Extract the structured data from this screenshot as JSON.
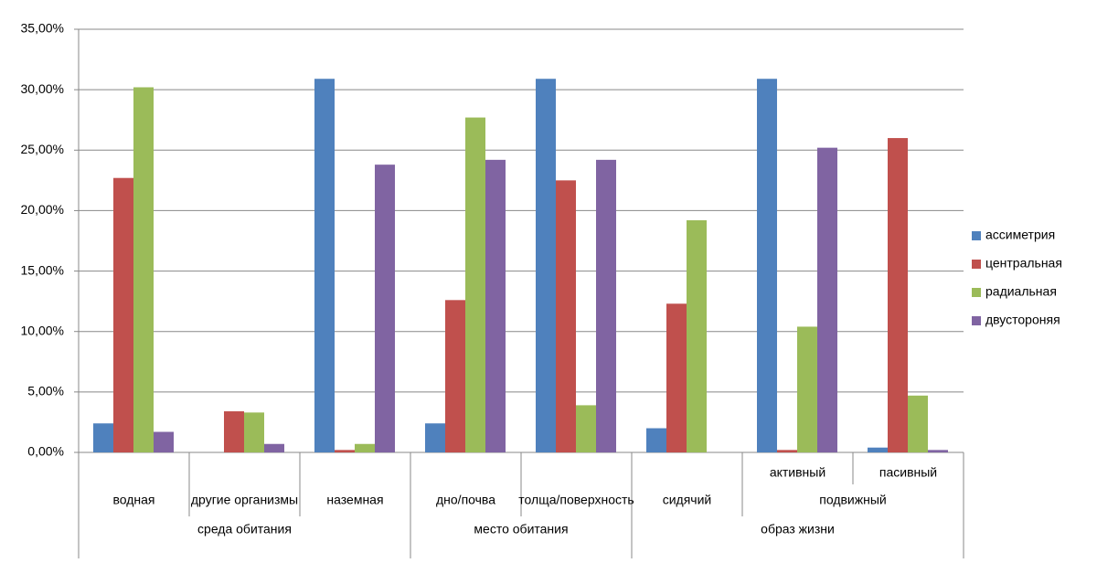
{
  "chart_data": {
    "type": "bar",
    "categories": [
      "водная",
      "другие организмы",
      "наземная",
      "дно/почва",
      "толща/поверхность",
      "сидячий",
      "активный",
      "пасивный"
    ],
    "subgroups": [
      {
        "label": "подвижный",
        "start": 6,
        "end": 7
      }
    ],
    "groups": [
      {
        "label": "среда обитания",
        "start": 0,
        "end": 2
      },
      {
        "label": "место обитания",
        "start": 3,
        "end": 4
      },
      {
        "label": "образ жизни",
        "start": 5,
        "end": 7
      }
    ],
    "series": [
      {
        "name": "ассиметрия",
        "color": "#4f81bd",
        "values": [
          2.4,
          0,
          30.9,
          2.4,
          30.9,
          2.0,
          30.9,
          0.4
        ]
      },
      {
        "name": "центральная",
        "color": "#c0504d",
        "values": [
          22.7,
          3.4,
          0.2,
          12.6,
          22.5,
          12.3,
          0.2,
          26.0
        ]
      },
      {
        "name": "радиальная",
        "color": "#9bbb59",
        "values": [
          30.2,
          3.3,
          0.7,
          27.7,
          3.9,
          19.2,
          10.4,
          4.7
        ]
      },
      {
        "name": "двустороняя",
        "color": "#8064a2",
        "values": [
          1.7,
          0.7,
          23.8,
          24.2,
          24.2,
          0,
          25.2,
          0.2
        ]
      }
    ],
    "ylim": [
      0,
      35
    ],
    "yticks": [
      {
        "value": 0,
        "label": "0,00%"
      },
      {
        "value": 5,
        "label": "5,00%"
      },
      {
        "value": 10,
        "label": "10,00%"
      },
      {
        "value": 15,
        "label": "15,00%"
      },
      {
        "value": 20,
        "label": "20,00%"
      },
      {
        "value": 25,
        "label": "25,00%"
      },
      {
        "value": 30,
        "label": "30,00%"
      },
      {
        "value": 35,
        "label": "35,00%"
      }
    ],
    "grid": true,
    "legend": "right"
  }
}
